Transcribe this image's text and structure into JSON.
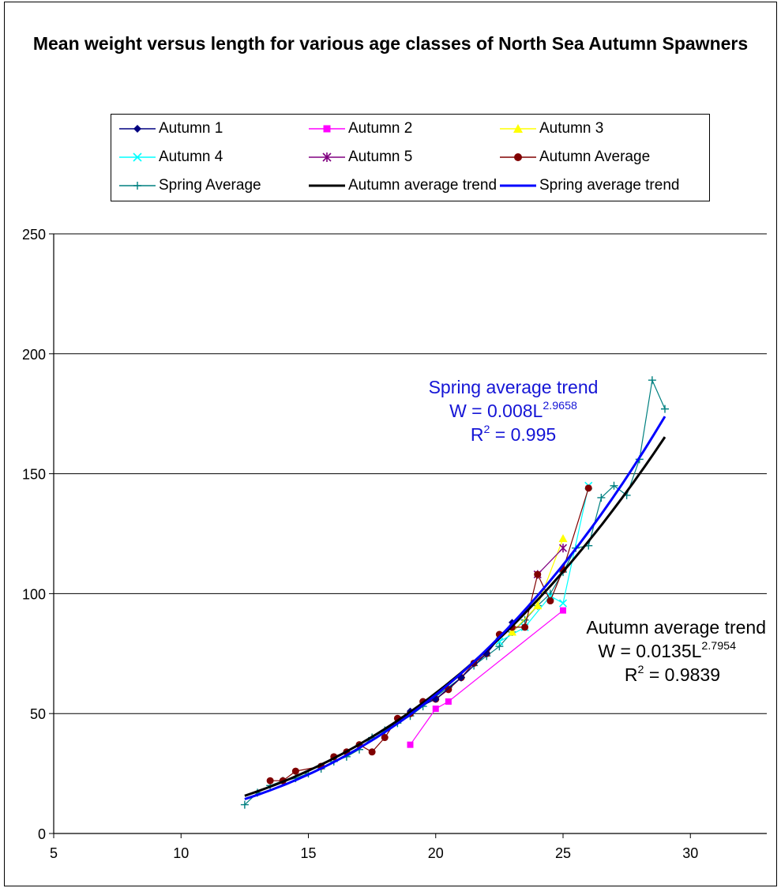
{
  "chart_data": {
    "type": "line",
    "title": "Mean weight versus length for various age classes of North Sea Autumn Spawners",
    "xlabel": "",
    "ylabel": "",
    "xlim": [
      5,
      33
    ],
    "ylim": [
      0,
      250
    ],
    "x_ticks": [
      "5",
      "10",
      "15",
      "20",
      "25",
      "30"
    ],
    "y_ticks": [
      "0",
      "50",
      "100",
      "150",
      "200",
      "250"
    ],
    "grid": "horizontal major gridlines",
    "legend_position": "top",
    "series": [
      {
        "name": "Autumn 1",
        "color": "#000080",
        "marker": "diamond",
        "x": [
          19,
          20,
          21,
          22,
          23
        ],
        "y": [
          51,
          56,
          65,
          75,
          88
        ]
      },
      {
        "name": "Autumn 2",
        "color": "#ff00ff",
        "marker": "square",
        "x": [
          19,
          20,
          20.5,
          25
        ],
        "y": [
          37,
          52,
          55,
          93
        ]
      },
      {
        "name": "Autumn 3",
        "color": "#ffff00",
        "marker": "triangle",
        "x": [
          23,
          24,
          25
        ],
        "y": [
          84,
          95,
          123
        ]
      },
      {
        "name": "Autumn 4",
        "color": "#00ffff",
        "marker": "x",
        "x": [
          22.5,
          23.5,
          24.5,
          25,
          26
        ],
        "y": [
          80,
          86,
          99,
          96,
          145
        ]
      },
      {
        "name": "Autumn 5",
        "color": "#800080",
        "marker": "star",
        "x": [
          24,
          25
        ],
        "y": [
          108,
          119
        ]
      },
      {
        "name": "Autumn Average",
        "color": "#800000",
        "marker": "circle",
        "x": [
          13.5,
          14,
          14.5,
          15.5,
          16,
          16.5,
          17,
          17.5,
          18,
          18.5,
          19,
          19.5,
          20,
          20.5,
          21,
          21.5,
          22,
          22.5,
          23,
          23.5,
          24,
          24.5,
          25,
          26
        ],
        "y": [
          22,
          22,
          26,
          28,
          32,
          34,
          37,
          34,
          40,
          48,
          50,
          55,
          56,
          60,
          65,
          71,
          75,
          83,
          86,
          86,
          108,
          97,
          110,
          144
        ]
      },
      {
        "name": "Spring Average",
        "color": "#008080",
        "marker": "plus",
        "x": [
          12.5,
          13,
          13.5,
          14,
          14.5,
          15,
          15.5,
          16,
          16.5,
          17,
          17.5,
          18,
          18.5,
          19,
          19.5,
          20,
          20.5,
          21,
          21.5,
          22,
          22.5,
          23,
          23.5,
          24,
          24.5,
          25,
          25.5,
          26,
          26.5,
          27,
          27.5,
          28,
          28.5,
          29
        ],
        "y": [
          12,
          17,
          20,
          22,
          23,
          25,
          27,
          30,
          32,
          35,
          40,
          43,
          46,
          49,
          53,
          57,
          61,
          65,
          70,
          74,
          78,
          84,
          89,
          95,
          100,
          109,
          119,
          120,
          140,
          145,
          141,
          156,
          189,
          177
        ]
      },
      {
        "name": "Autumn average trend",
        "color": "#000000",
        "marker": "none",
        "equation": {
          "a": 0.0135,
          "b": 2.7954
        },
        "x_range": [
          12.5,
          29
        ]
      },
      {
        "name": "Spring average trend",
        "color": "#0000ff",
        "marker": "none",
        "equation": {
          "a": 0.008,
          "b": 2.9658
        },
        "x_range": [
          12.5,
          29
        ]
      }
    ],
    "annotations": [
      {
        "id": "spring",
        "line1": "Spring average trend",
        "line2_prefix": "W = 0.008L",
        "line2_exp": "2.9658",
        "line3_prefix": "R",
        "line3_exp": "2",
        "line3_suffix": " = 0.995",
        "color": "#1515d6"
      },
      {
        "id": "autumn",
        "line1": "Autumn average trend",
        "line2_prefix": "W = 0.0135L",
        "line2_exp": "2.7954",
        "line3_prefix": "R",
        "line3_exp": "2",
        "line3_suffix": " = 0.9839",
        "color": "#000000"
      }
    ]
  }
}
